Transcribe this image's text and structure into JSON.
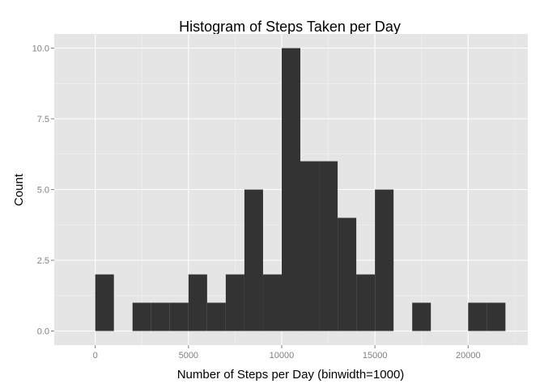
{
  "chart_data": {
    "type": "bar",
    "subtype": "histogram",
    "title": "Histogram of Steps Taken per Day",
    "xlabel": "Number of Steps per Day (binwidth=1000)",
    "ylabel": "Count",
    "binwidth": 1000,
    "bins": [
      {
        "start": 0,
        "count": 2
      },
      {
        "start": 1000,
        "count": 0
      },
      {
        "start": 2000,
        "count": 1
      },
      {
        "start": 3000,
        "count": 1
      },
      {
        "start": 4000,
        "count": 1
      },
      {
        "start": 5000,
        "count": 2
      },
      {
        "start": 6000,
        "count": 1
      },
      {
        "start": 7000,
        "count": 2
      },
      {
        "start": 8000,
        "count": 5
      },
      {
        "start": 9000,
        "count": 2
      },
      {
        "start": 10000,
        "count": 10
      },
      {
        "start": 11000,
        "count": 6
      },
      {
        "start": 12000,
        "count": 6
      },
      {
        "start": 13000,
        "count": 4
      },
      {
        "start": 14000,
        "count": 2
      },
      {
        "start": 15000,
        "count": 5
      },
      {
        "start": 16000,
        "count": 0
      },
      {
        "start": 17000,
        "count": 1
      },
      {
        "start": 18000,
        "count": 0
      },
      {
        "start": 19000,
        "count": 0
      },
      {
        "start": 20000,
        "count": 1
      },
      {
        "start": 21000,
        "count": 1
      }
    ],
    "xticks": [
      0,
      5000,
      10000,
      15000,
      20000
    ],
    "xtick_labels": [
      "0",
      "5000",
      "10000",
      "15000",
      "20000"
    ],
    "yticks": [
      0,
      2.5,
      5,
      7.5,
      10
    ],
    "ytick_labels": [
      "0.0",
      "2.5",
      "5.0",
      "7.5",
      "10.0"
    ],
    "xlim": [
      -2200,
      23200
    ],
    "ylim": [
      -0.5,
      10.5
    ],
    "grid": true,
    "legend": "none",
    "colors": {
      "panel_background": "#e5e5e5",
      "grid_major": "#ffffff",
      "grid_minor": "#f2f2f2",
      "bar_fill": "#333333",
      "tick_label": "#7f7f7f",
      "tick_mark": "#7f7f7f"
    }
  }
}
